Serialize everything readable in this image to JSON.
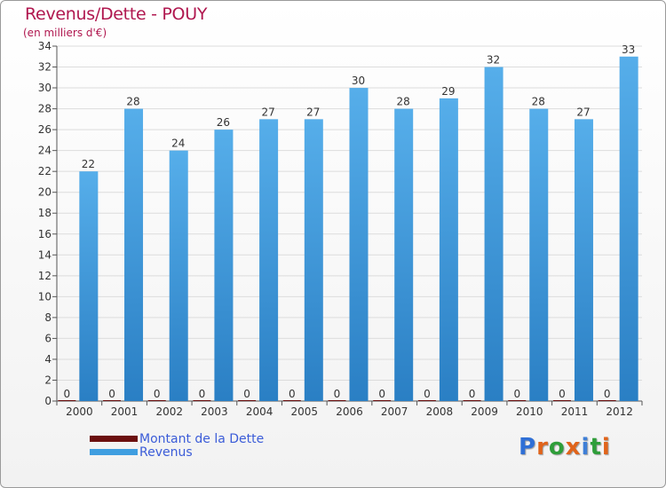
{
  "chart_data": {
    "type": "bar",
    "title": "Revenus/Dette - POUY",
    "subtitle": "(en milliers d'€)",
    "categories": [
      "2000",
      "2001",
      "2002",
      "2003",
      "2004",
      "2005",
      "2006",
      "2007",
      "2008",
      "2009",
      "2010",
      "2011",
      "2012"
    ],
    "series": [
      {
        "name": "Montant de la Dette",
        "color": "#6b0f0f",
        "values": [
          0,
          0,
          0,
          0,
          0,
          0,
          0,
          0,
          0,
          0,
          0,
          0,
          0
        ]
      },
      {
        "name": "Revenus",
        "color": "#3f9ee0",
        "values": [
          22,
          28,
          24,
          26,
          27,
          27,
          30,
          28,
          29,
          32,
          28,
          27,
          33
        ]
      }
    ],
    "ylim": [
      0,
      34
    ],
    "yticks": [
      0,
      2,
      4,
      6,
      8,
      10,
      12,
      14,
      16,
      18,
      20,
      22,
      24,
      26,
      28,
      30,
      32,
      34
    ],
    "grid": true,
    "legend": "bottom-left"
  },
  "logo": {
    "letters": [
      "P",
      "r",
      "o",
      "x",
      "i",
      "t",
      "i"
    ],
    "colors": [
      "#2f6fd6",
      "#e0641b",
      "#2f9e3a",
      "#e0641b",
      "#3f7fd6",
      "#2f9e3a",
      "#e0641b"
    ]
  }
}
